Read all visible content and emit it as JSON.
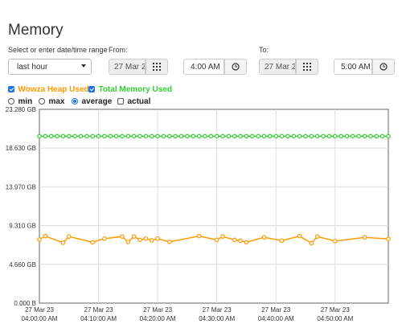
{
  "page": {
    "title": "Memory"
  },
  "range": {
    "label": "Select or enter date/time range",
    "selected": "last hour"
  },
  "from": {
    "label": "From:",
    "date_value": "27 Mar 2",
    "time_value": "4:00 AM"
  },
  "to": {
    "label": "To:",
    "date_value": "27 Mar 2",
    "time_value": "5:00 AM"
  },
  "legend": {
    "heap": {
      "label": "Wowza Heap Used",
      "color": "#ff9900",
      "checked": true
    },
    "total": {
      "label": "Total Memory Used",
      "color": "#33cc33",
      "checked": true
    }
  },
  "aggregation": {
    "options": [
      {
        "label": "min",
        "type": "radio",
        "checked": false
      },
      {
        "label": "max",
        "type": "radio",
        "checked": false
      },
      {
        "label": "average",
        "type": "radio",
        "checked": true
      },
      {
        "label": "actual",
        "type": "checkbox",
        "checked": false
      }
    ]
  },
  "chart_data": {
    "type": "line",
    "title": "",
    "xlabel": "",
    "ylabel": "",
    "ylim": [
      0,
      23.28
    ],
    "y_ticks": [
      "23.280 GB",
      "18.630 GB",
      "13.970 GB",
      "9.310 GB",
      "4.660 GB",
      "0.000 B"
    ],
    "y_tick_values": [
      23.28,
      18.63,
      13.97,
      9.31,
      4.66,
      0
    ],
    "x_ticks": [
      {
        "date": "27 Mar 23",
        "time": "04:00:00 AM"
      },
      {
        "date": "27 Mar 23",
        "time": "04:10:00 AM"
      },
      {
        "date": "27 Mar 23",
        "time": "04:20:00 AM"
      },
      {
        "date": "27 Mar 23",
        "time": "04:30:00 AM"
      },
      {
        "date": "27 Mar 23",
        "time": "04:40:00 AM"
      },
      {
        "date": "27 Mar 23",
        "time": "04:50:00 AM"
      }
    ],
    "x_tick_minutes": [
      0,
      10,
      20,
      30,
      40,
      50
    ],
    "xlim_minutes": [
      0,
      59
    ],
    "grid": true,
    "series": [
      {
        "name": "Total Memory Used",
        "color": "#33cc33",
        "x_minutes": [
          0,
          1,
          2,
          3,
          4,
          5,
          6,
          7,
          8,
          9,
          10,
          11,
          12,
          13,
          14,
          15,
          16,
          17,
          18,
          19,
          20,
          21,
          22,
          23,
          24,
          25,
          26,
          27,
          28,
          29,
          30,
          31,
          32,
          33,
          34,
          35,
          36,
          37,
          38,
          39,
          40,
          41,
          42,
          43,
          44,
          45,
          46,
          47,
          48,
          49,
          50,
          51,
          52,
          53,
          54,
          55,
          56,
          57,
          58,
          59
        ],
        "values": [
          20.05,
          20.05,
          20.05,
          20.05,
          20.05,
          20.05,
          20.05,
          20.05,
          20.05,
          20.05,
          20.05,
          20.05,
          20.05,
          20.05,
          20.05,
          20.05,
          20.05,
          20.05,
          20.05,
          20.05,
          20.05,
          20.05,
          20.05,
          20.05,
          20.05,
          20.05,
          20.05,
          20.05,
          20.05,
          20.05,
          20.05,
          20.05,
          20.05,
          20.05,
          20.05,
          20.05,
          20.05,
          20.05,
          20.05,
          20.05,
          20.05,
          20.05,
          20.05,
          20.05,
          20.05,
          20.05,
          20.05,
          20.05,
          20.05,
          20.05,
          20.05,
          20.05,
          20.05,
          20.05,
          20.05,
          20.05,
          20.05,
          20.05,
          20.05,
          20.05
        ]
      },
      {
        "name": "Wowza Heap Used",
        "color": "#ff9900",
        "x_minutes": [
          0,
          1,
          4,
          5,
          9,
          11,
          14,
          15,
          16,
          17,
          18,
          19,
          20,
          22,
          27,
          30,
          31,
          33,
          34,
          35,
          38,
          41,
          44,
          46,
          47,
          50,
          55,
          59
        ],
        "values": [
          7.65,
          8.05,
          7.25,
          8.0,
          7.3,
          7.75,
          8.0,
          7.35,
          8.0,
          7.6,
          7.75,
          7.55,
          7.75,
          7.35,
          8.05,
          7.6,
          8.0,
          7.6,
          7.5,
          7.3,
          7.9,
          7.5,
          8.05,
          7.2,
          8.0,
          7.45,
          7.9,
          7.7
        ]
      }
    ]
  }
}
